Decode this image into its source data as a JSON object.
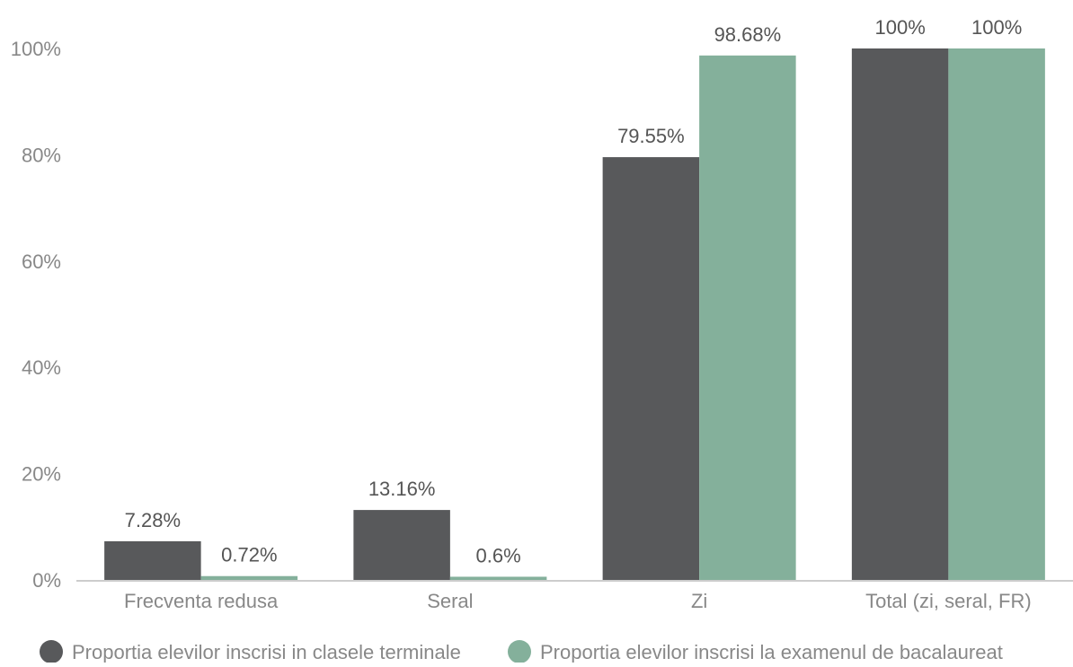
{
  "chart_data": {
    "type": "bar",
    "categories": [
      "Frecventa redusa",
      "Seral",
      "Zi",
      "Total (zi, seral, FR)"
    ],
    "series": [
      {
        "name": "Proportia elevilor inscrisi in clasele terminale",
        "values": [
          7.28,
          13.16,
          79.55,
          100
        ],
        "value_labels": [
          "7.28%",
          "13.16%",
          "79.55%",
          "100%"
        ],
        "color": "#58595b"
      },
      {
        "name": "Proportia elevilor inscrisi la examenul de bacalaureat",
        "values": [
          0.72,
          0.6,
          98.68,
          100
        ],
        "value_labels": [
          "0.72%",
          "0.6%",
          "98.68%",
          "100%"
        ],
        "color": "#84b09b"
      }
    ],
    "y_ticks": [
      "0%",
      "20%",
      "40%",
      "60%",
      "80%",
      "100%"
    ],
    "ylim": [
      0,
      100
    ],
    "grid": false,
    "legend_position": "bottom",
    "title": "",
    "xlabel": "",
    "ylabel": ""
  }
}
